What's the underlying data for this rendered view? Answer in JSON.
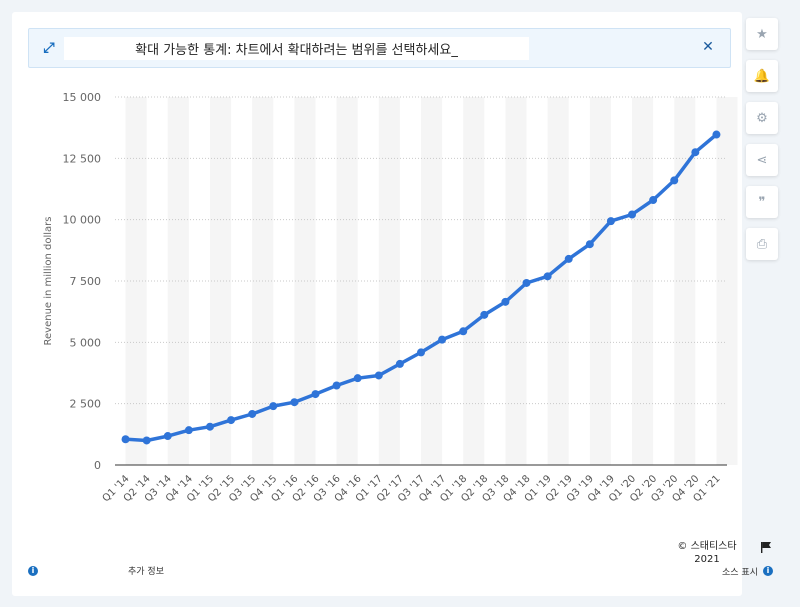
{
  "banner": {
    "text": "확대 가능한 통계: 차트에서 확대하려는 범위를 선택하세요_",
    "expand_icon": "expand-icon",
    "close_icon": "close-icon"
  },
  "toolbar": {
    "items": [
      {
        "name": "star-icon",
        "glyph": "★"
      },
      {
        "name": "bell-icon",
        "glyph": "🔔"
      },
      {
        "name": "gear-icon",
        "glyph": "⚙"
      },
      {
        "name": "share-icon",
        "glyph": "⋖"
      },
      {
        "name": "quote-icon",
        "glyph": "❞"
      },
      {
        "name": "print-icon",
        "glyph": "⎙"
      }
    ]
  },
  "footer": {
    "additional_info": "추가 정보",
    "copyright": "© 스태티스타 2021",
    "source": "소스 표시"
  },
  "colors": {
    "line": "#2f74d8",
    "grid": "#c9c9c9",
    "band": "#f5f5f5"
  },
  "chart_data": {
    "type": "line",
    "title": "",
    "xlabel": "",
    "ylabel": "Revenue in million dollars",
    "ylim": [
      0,
      15000
    ],
    "yticks": [
      0,
      2500,
      5000,
      7500,
      10000,
      12500,
      15000
    ],
    "ytick_labels": [
      "0",
      "2 500",
      "5 000",
      "7 500",
      "10 000",
      "12 500",
      "15 000"
    ],
    "grid": true,
    "categories": [
      "Q1 '14",
      "Q2 '14",
      "Q3 '14",
      "Q4 '14",
      "Q1 '15",
      "Q2 '15",
      "Q3 '15",
      "Q4 '15",
      "Q1 '16",
      "Q2 '16",
      "Q3 '16",
      "Q4 '16",
      "Q1 '17",
      "Q2 '17",
      "Q3 '17",
      "Q4 '17",
      "Q1 '18",
      "Q2 '18",
      "Q3 '18",
      "Q4 '18",
      "Q1 '19",
      "Q2 '19",
      "Q3 '19",
      "Q4 '19",
      "Q1 '20",
      "Q2 '20",
      "Q3 '20",
      "Q4 '20",
      "Q1 '21"
    ],
    "values": [
      1050,
      1000,
      1180,
      1420,
      1560,
      1830,
      2080,
      2400,
      2560,
      2890,
      3240,
      3540,
      3650,
      4120,
      4590,
      5110,
      5450,
      6120,
      6650,
      7420,
      7690,
      8400,
      9000,
      9940,
      10210,
      10800,
      11600,
      12750,
      13470
    ]
  }
}
